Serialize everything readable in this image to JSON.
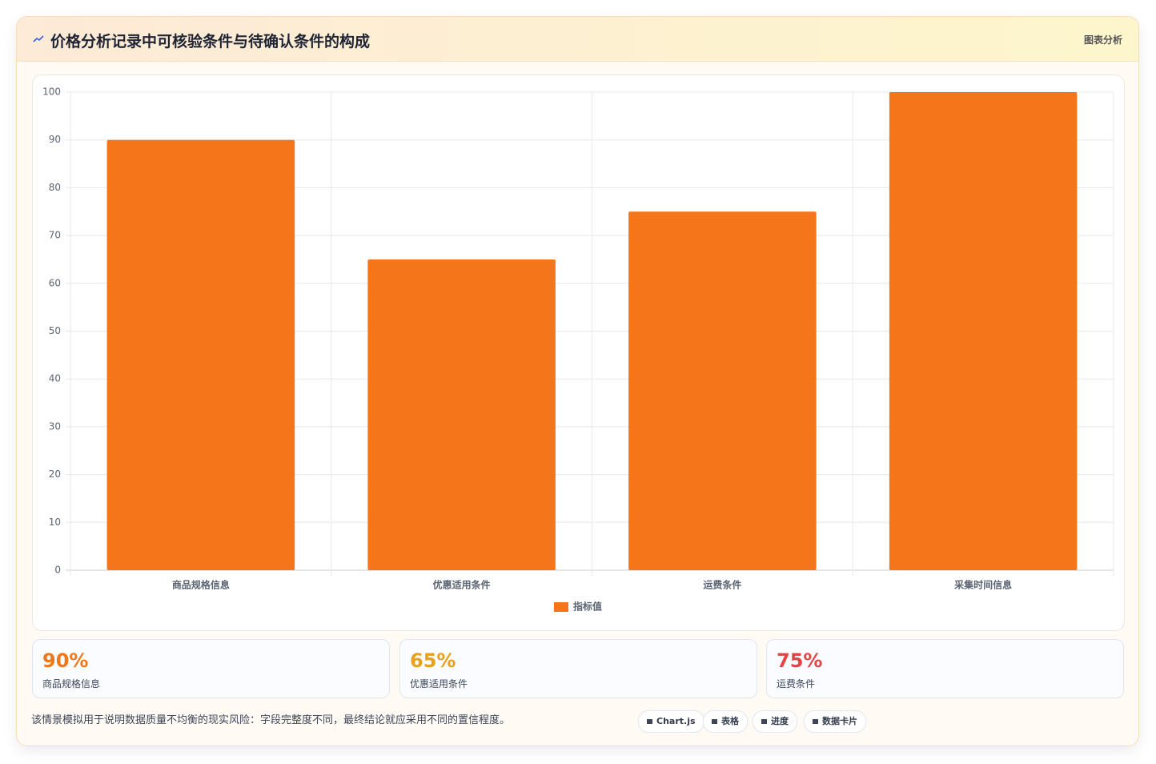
{
  "header": {
    "title": "价格分析记录中可核验条件与待确认条件的构成",
    "badge": "图表分析"
  },
  "chart_data": {
    "type": "bar",
    "categories": [
      "商品规格信息",
      "优惠适用条件",
      "运费条件",
      "采集时间信息"
    ],
    "series": [
      {
        "name": "指标值",
        "color": "#f5761a",
        "values": [
          90,
          65,
          75,
          100
        ]
      }
    ],
    "ylim": [
      0,
      100
    ],
    "yticks": [
      0,
      10,
      20,
      30,
      40,
      50,
      60,
      70,
      80,
      90,
      100
    ],
    "grid": true,
    "legend": "bottom"
  },
  "cards": [
    {
      "value": "90%",
      "label": "商品规格信息",
      "color": "#f07818"
    },
    {
      "value": "65%",
      "label": "优惠适用条件",
      "color": "#e9a01c"
    },
    {
      "value": "75%",
      "label": "运费条件",
      "color": "#e04646"
    }
  ],
  "footer": {
    "note": "该情景模拟用于说明数据质量不均衡的现实风险：字段完整度不同，最终结论就应采用不同的置信程度。",
    "chips": [
      "Chart.js",
      "表格",
      "进度",
      "数据卡片"
    ]
  }
}
